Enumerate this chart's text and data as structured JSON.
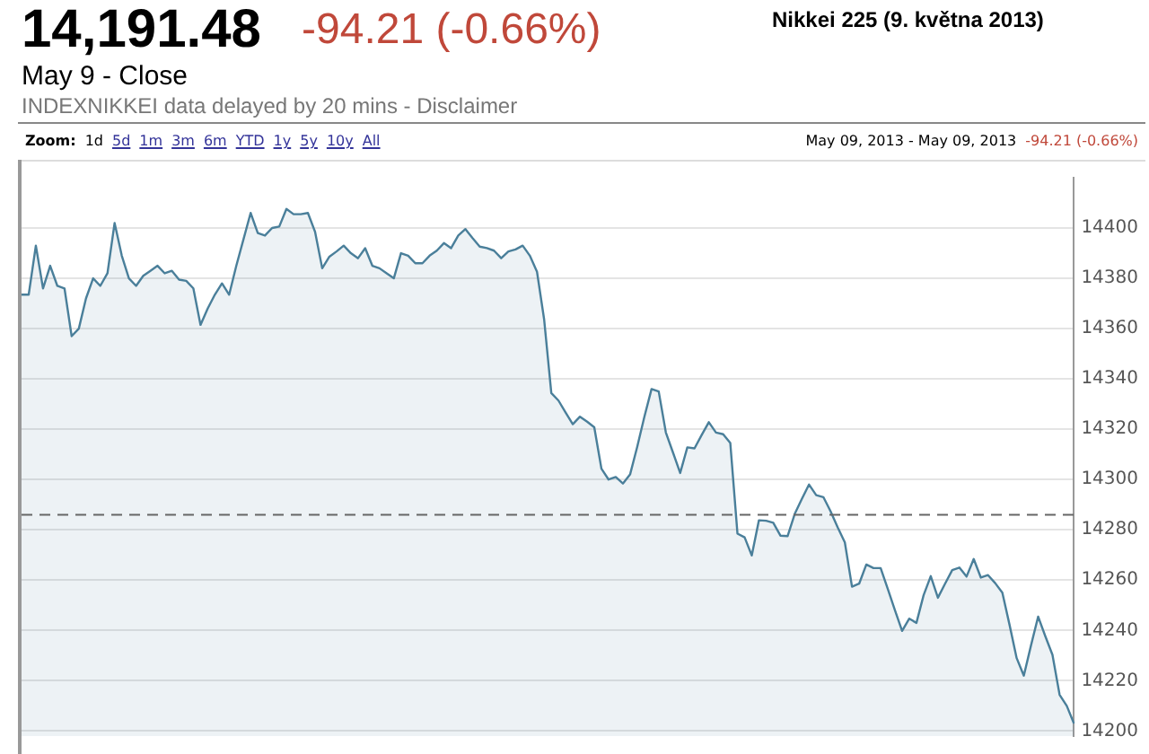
{
  "chart_data": {
    "type": "area",
    "title": "14,191.48",
    "subtitle": "May 9 - Close",
    "annotations": [
      "-94.21 (-0.66%)",
      "Nikkei 225 (9. května 2013)",
      "INDEXNIKKEI data delayed by 20 mins - Disclaimer",
      "Zoom: 1d 5d 1m 3m 6m YTD 1y 5y 10y All",
      "May 09, 2013 - May 09, 2013",
      "-94.21 (-0.66%)"
    ],
    "categories": [
      null,
      null,
      null,
      null,
      null,
      null,
      null,
      null,
      null,
      null,
      null,
      null,
      null,
      null,
      null,
      null,
      null,
      null,
      null,
      null,
      null,
      null,
      null,
      null,
      null,
      null,
      null,
      null,
      null,
      null,
      null,
      null,
      null,
      null,
      null,
      null,
      null,
      null,
      null,
      null,
      null,
      null,
      null,
      null,
      null,
      null,
      null,
      null,
      null,
      null,
      null,
      null,
      null,
      null,
      null,
      null,
      null,
      null,
      null,
      null,
      null,
      null,
      null,
      null,
      null,
      null,
      null,
      null,
      null,
      null,
      null,
      null,
      null,
      null,
      null,
      null,
      null,
      null,
      null,
      null,
      null,
      null,
      null,
      null,
      null,
      null,
      null,
      null,
      null,
      null,
      null,
      null,
      null,
      null,
      null,
      null,
      null,
      null,
      null,
      null,
      null,
      null,
      null,
      null,
      null,
      null,
      null,
      null,
      null,
      null,
      null,
      null,
      null,
      null,
      null,
      null,
      null,
      null,
      null,
      null,
      null,
      null,
      null,
      null,
      null,
      null,
      null,
      null,
      null,
      null,
      null,
      null,
      null,
      null,
      null,
      null,
      null,
      null,
      null,
      null,
      null,
      null,
      null,
      null,
      null,
      null,
      null,
      null
    ],
    "series": [
      {
        "color": "#4a7f9a",
        "values": [
          14373.5,
          14373.5,
          14393,
          14376,
          14385,
          14377,
          14376,
          14357,
          14360,
          14372,
          14380,
          14377,
          14382,
          14402,
          14389,
          14380,
          14377,
          14381,
          14383,
          14385,
          14382,
          14383,
          14379.5,
          14379,
          14376,
          14361.5,
          14368,
          14373.5,
          14378,
          14373.5,
          14385,
          14395.5,
          14406,
          14398,
          14397,
          14400,
          14400.6,
          14407.6,
          14405.5,
          14405.5,
          14406,
          14398.5,
          14384,
          14388.6,
          14390.7,
          14393,
          14390,
          14388,
          14392,
          14385,
          14384,
          14382,
          14380,
          14390,
          14389,
          14386,
          14386,
          14389,
          14391,
          14394,
          14392,
          14397,
          14399.6,
          14396,
          14392.6,
          14392,
          14391,
          14388,
          14390.7,
          14391.5,
          14393,
          14389,
          14382.6,
          14363.6,
          14334.4,
          14331.4,
          14326.6,
          14322,
          14325,
          14323,
          14320.8,
          14304.3,
          14300,
          14301,
          14298.4,
          14302,
          14313,
          14325,
          14336,
          14335,
          14318.7,
          14310.7,
          14302.6,
          14312.8,
          14312.4,
          14317.7,
          14322.8,
          14318.7,
          14318,
          14314.5,
          14278.5,
          14277,
          14269.8,
          14283.8,
          14283.6,
          14282.8,
          14277.7,
          14277.5,
          14286.3,
          14292.3,
          14298,
          14293.8,
          14293,
          14287.4,
          14281,
          14275,
          14257.4,
          14258.6,
          14266.2,
          14264.8,
          14264.8,
          14256.5,
          14248,
          14239.8,
          14244.7,
          14243,
          14254,
          14261.6,
          14253,
          14258.6,
          14264,
          14265,
          14261.4,
          14268.4,
          14261,
          14262,
          14258.8,
          14255,
          14242.3,
          14229,
          14222,
          14234,
          14245.5,
          14237.7,
          14230.3,
          14214.4,
          14210,
          14203
        ]
      }
    ],
    "ylim": [
      14198,
      14420
    ],
    "yticks": [
      14200,
      14220,
      14240,
      14260,
      14280,
      14300,
      14320,
      14340,
      14360,
      14380,
      14400
    ],
    "ref_lines": [
      {
        "axis": "y",
        "value": 14286,
        "color": "#666666",
        "line_style": "dashed"
      }
    ],
    "grid": "y",
    "legend": false,
    "marker": "none",
    "line_style": "solid",
    "tick_labels": "y"
  }
}
